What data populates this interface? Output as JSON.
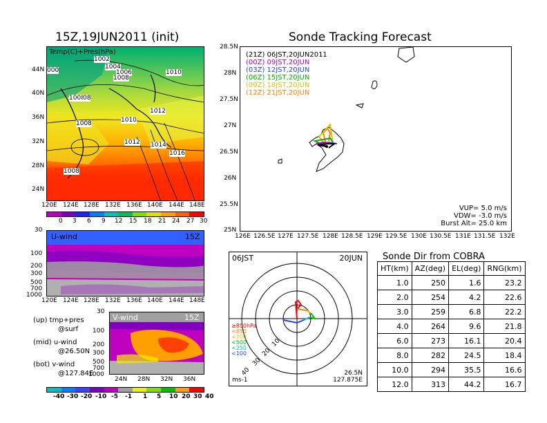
{
  "map_panel": {
    "title": "15Z,19JUN2011 (init)",
    "label": "Temp(C)+Pres(hPa)",
    "lat_ticks": [
      "44N",
      "40N",
      "36N",
      "32N",
      "28N",
      "24N"
    ],
    "lon_ticks": [
      "120E",
      "124E",
      "128E",
      "132E",
      "136E",
      "140E",
      "144E",
      "148E"
    ],
    "isobar_labels": [
      "1002",
      "1004",
      "1006",
      "1008",
      "1010",
      "1008",
      "08",
      "1008",
      "1010",
      "1012",
      "1012",
      "1014",
      "1016",
      "1008",
      "000"
    ],
    "colorbar_ticks": [
      "0",
      "3",
      "6",
      "9",
      "12",
      "15",
      "18",
      "21",
      "24",
      "27",
      "30"
    ]
  },
  "uwind_panel": {
    "label": "U-wind",
    "time": "15Z",
    "p_ticks": [
      "30",
      "100",
      "200",
      "300",
      "500",
      "700",
      "1000"
    ],
    "lon_ticks": [
      "120E",
      "124E",
      "128E",
      "132E",
      "136E",
      "140E",
      "144E",
      "148E"
    ]
  },
  "legend_notes": {
    "up": "(up) tmp+pres",
    "up2": "@surf",
    "mid": "(mid) u-wind",
    "mid2": "@26.50N",
    "bot": "(bot) v-wind",
    "bot2": "@127.84E"
  },
  "vwind_panel": {
    "label": "V-wind",
    "time": "15Z",
    "p_ticks": [
      "30",
      "100",
      "200",
      "300",
      "500",
      "700",
      "1000"
    ],
    "lat_ticks": [
      "24N",
      "28N",
      "32N",
      "36N"
    ],
    "colorbar_ticks": [
      "-40",
      "-30",
      "-20",
      "-10",
      "-5",
      "-1",
      "1",
      "5",
      "10",
      "20",
      "30",
      "40"
    ]
  },
  "tracking": {
    "title": "Sonde Tracking Forecast",
    "lat_ticks": [
      "28.5N",
      "28N",
      "27.5N",
      "27N",
      "26.5N",
      "26N",
      "25.5N",
      "25N"
    ],
    "lon_ticks": [
      "126E",
      "126.5E",
      "127E",
      "127.5E",
      "128E",
      "128.5E",
      "129E",
      "129.5E",
      "130E",
      "130.5E",
      "131E",
      "131.5E",
      "132E"
    ],
    "runs": [
      {
        "text": "(21Z)  06JST,20JUN2011",
        "color": "#000000"
      },
      {
        "text": "(00Z)  09JST,20JUN",
        "color": "#b000b0"
      },
      {
        "text": "(03Z)  12JST,20JUN",
        "color": "#2040ff"
      },
      {
        "text": "(06Z)  15JST,20JUN",
        "color": "#00b000"
      },
      {
        "text": "(09Z)  18JST,20JUN",
        "color": "#e0c000"
      },
      {
        "text": "(12Z)  21JST,20JUN",
        "color": "#ff8000"
      }
    ],
    "vup": "VUP=  5.0  m/s",
    "vdw": "VDW=  -3.0  m/s",
    "burst": "Burst Alt=  25.0  km"
  },
  "polar": {
    "time_left": "06JST",
    "date_right": "20JUN",
    "ring_labels": [
      "10",
      "20",
      "30",
      "40"
    ],
    "levels": [
      {
        "text": "≥850hPa",
        "color": "#ff0000"
      },
      {
        "text": "<850",
        "color": "#ff8000"
      },
      {
        "text": "<700",
        "color": "#e0c000"
      },
      {
        "text": "<500",
        "color": "#00c000"
      },
      {
        "text": "<250",
        "color": "#00c0c0"
      },
      {
        "text": "<100",
        "color": "#2040ff"
      }
    ],
    "unit": "ms-1",
    "loc_lat": "26.5N",
    "loc_lon": "127.875E"
  },
  "chart_data": [
    {
      "type": "table",
      "title": "Sonde Dir from COBRA",
      "columns": [
        "HT(km)",
        "AZ(deg)",
        "EL(deg)",
        "RNG(km)"
      ],
      "rows": [
        [
          "1.0",
          "250",
          "1.6",
          "23.2"
        ],
        [
          "2.0",
          "254",
          "4.2",
          "22.6"
        ],
        [
          "3.0",
          "259",
          "6.8",
          "22.2"
        ],
        [
          "4.0",
          "264",
          "9.6",
          "21.8"
        ],
        [
          "6.0",
          "273",
          "16.1",
          "20.4"
        ],
        [
          "8.0",
          "282",
          "24.5",
          "18.4"
        ],
        [
          "10.0",
          "294",
          "35.5",
          "16.6"
        ],
        [
          "12.0",
          "313",
          "44.2",
          "16.7"
        ]
      ]
    }
  ],
  "colors": {
    "cool": [
      "#c000c0",
      "#8000c0",
      "#2020ff",
      "#0080ff",
      "#00c0c0",
      "#00c060",
      "#80e000",
      "#e0e000",
      "#ffa000",
      "#ff6000",
      "#ff0000"
    ],
    "vwind": [
      "#00c0c0",
      "#0080ff",
      "#4040ff",
      "#8000c0",
      "#c000c0",
      "#a0a0a0",
      "#f0f000",
      "#80e000",
      "#00c000",
      "#ffa000",
      "#ff0000"
    ]
  }
}
